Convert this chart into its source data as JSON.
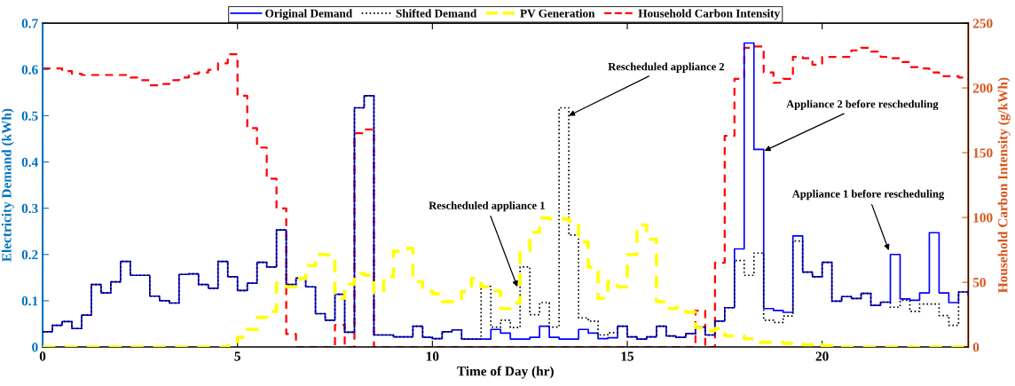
{
  "chart_data": {
    "type": "step",
    "xlabel": "Time of Day (hr)",
    "ylabel": "Electricity Demand (kWh)",
    "y2label": "Household Carbon Intensity (g/kWh)",
    "x": [
      0,
      0.25,
      0.5,
      0.75,
      1,
      1.25,
      1.5,
      1.75,
      2,
      2.25,
      2.5,
      2.75,
      3,
      3.25,
      3.5,
      3.75,
      4,
      4.25,
      4.5,
      4.75,
      5,
      5.25,
      5.5,
      5.75,
      6,
      6.25,
      6.5,
      6.75,
      7,
      7.25,
      7.5,
      7.75,
      8,
      8.25,
      8.5,
      8.75,
      9,
      9.25,
      9.5,
      9.75,
      10,
      10.25,
      10.5,
      10.75,
      11,
      11.25,
      11.5,
      11.75,
      12,
      12.25,
      12.5,
      12.75,
      13,
      13.25,
      13.5,
      13.75,
      14,
      14.25,
      14.5,
      14.75,
      15,
      15.25,
      15.5,
      15.75,
      16,
      16.25,
      16.5,
      16.75,
      17,
      17.25,
      17.5,
      17.75,
      18,
      18.25,
      18.5,
      18.75,
      19,
      19.25,
      19.5,
      19.75,
      20,
      20.25,
      20.5,
      20.75,
      21,
      21.25,
      21.5,
      21.75,
      22,
      22.25,
      22.5,
      22.75,
      23,
      23.25,
      23.5,
      23.75
    ],
    "series": [
      {
        "name": "Original Demand",
        "color": "#0000ff",
        "line_style": "solid",
        "values": [
          0.033,
          0.047,
          0.055,
          0.04,
          0.069,
          0.135,
          0.117,
          0.141,
          0.185,
          0.155,
          0.155,
          0.11,
          0.1,
          0.095,
          0.157,
          0.158,
          0.135,
          0.127,
          0.185,
          0.152,
          0.122,
          0.138,
          0.183,
          0.173,
          0.253,
          0.135,
          0.149,
          0.13,
          0.072,
          0.058,
          0.114,
          0.032,
          0.517,
          0.543,
          0.026,
          0.026,
          0.022,
          0.022,
          0.045,
          0.021,
          0.018,
          0.033,
          0.037,
          0.017,
          0.017,
          0.017,
          0.038,
          0.03,
          0.017,
          0.017,
          0.021,
          0.045,
          0.021,
          0.017,
          0.017,
          0.038,
          0.03,
          0.018,
          0.02,
          0.045,
          0.022,
          0.017,
          0.022,
          0.045,
          0.024,
          0.021,
          0.029,
          0.043,
          0.026,
          0.056,
          0.085,
          0.212,
          0.657,
          0.427,
          0.083,
          0.079,
          0.075,
          0.24,
          0.162,
          0.152,
          0.183,
          0.099,
          0.109,
          0.105,
          0.116,
          0.09,
          0.097,
          0.2,
          0.104,
          0.101,
          0.117,
          0.247,
          0.117,
          0.096,
          0.119,
          0.113
        ]
      },
      {
        "name": "Shifted Demand",
        "color": "#000000",
        "line_style": "dotted",
        "values": [
          0.033,
          0.047,
          0.055,
          0.04,
          0.069,
          0.135,
          0.117,
          0.141,
          0.185,
          0.155,
          0.155,
          0.11,
          0.1,
          0.095,
          0.157,
          0.158,
          0.135,
          0.127,
          0.185,
          0.152,
          0.122,
          0.138,
          0.183,
          0.173,
          0.253,
          0.135,
          0.149,
          0.13,
          0.072,
          0.058,
          0.114,
          0.032,
          0.517,
          0.543,
          0.026,
          0.026,
          0.022,
          0.022,
          0.045,
          0.021,
          0.018,
          0.033,
          0.037,
          0.017,
          0.017,
          0.131,
          0.043,
          0.058,
          0.042,
          0.173,
          0.07,
          0.096,
          0.043,
          0.517,
          0.242,
          0.063,
          0.056,
          0.026,
          0.031,
          0.045,
          0.022,
          0.017,
          0.022,
          0.045,
          0.024,
          0.021,
          0.029,
          0.043,
          0.026,
          0.056,
          0.085,
          0.187,
          0.155,
          0.203,
          0.058,
          0.053,
          0.067,
          0.229,
          0.162,
          0.152,
          0.183,
          0.099,
          0.109,
          0.105,
          0.116,
          0.09,
          0.097,
          0.086,
          0.101,
          0.077,
          0.093,
          0.093,
          0.068,
          0.047,
          0.119,
          0.113
        ]
      },
      {
        "name": "PV Generation",
        "color": "#ffff00",
        "line_style": "dashed",
        "values": [
          0,
          0,
          0,
          0,
          0,
          0,
          0,
          0,
          0,
          0,
          0,
          0,
          0,
          0,
          0,
          0,
          0,
          0,
          0,
          0.003,
          0.021,
          0.038,
          0.064,
          0.077,
          0.138,
          0.13,
          0.148,
          0.176,
          0.2,
          0.199,
          0.105,
          0.136,
          0.159,
          0.155,
          0.117,
          0.152,
          0.207,
          0.213,
          0.141,
          0.121,
          0.115,
          0.098,
          0.098,
          0.12,
          0.148,
          0.13,
          0.121,
          0.083,
          0.095,
          0.208,
          0.248,
          0.279,
          0.277,
          0.277,
          0.272,
          0.227,
          0.173,
          0.105,
          0.141,
          0.13,
          0.2,
          0.264,
          0.233,
          0.098,
          0.083,
          0.086,
          0.075,
          0.042,
          0.035,
          0.04,
          0.024,
          0.024,
          0.018,
          0.01,
          0.01,
          0.01,
          0.008,
          0.007,
          0.005,
          0.007,
          0.003,
          0,
          0,
          0,
          0,
          0,
          0,
          0,
          0,
          0,
          0,
          0,
          0,
          0,
          0,
          0
        ]
      },
      {
        "name": "Household Carbon Intensity",
        "color": "#ff0000",
        "line_style": "dashed",
        "axis": "y2",
        "values": [
          215,
          215,
          213,
          211,
          210,
          210,
          210,
          210,
          210,
          208,
          206,
          202,
          203,
          206,
          208,
          211,
          212,
          214,
          219,
          226,
          194,
          169,
          154,
          130,
          107,
          10,
          0,
          0,
          0,
          0,
          17,
          0,
          165,
          168,
          0,
          0,
          0,
          0,
          0,
          0,
          0,
          0,
          0,
          0,
          0,
          0,
          0,
          0,
          0,
          0,
          0,
          0,
          0,
          0,
          0,
          0,
          0,
          0,
          0,
          0,
          0,
          0,
          0,
          0,
          0,
          0,
          0,
          28,
          0,
          65,
          163,
          207,
          231,
          232,
          212,
          204,
          207,
          224,
          223,
          218,
          224,
          224,
          224,
          229,
          231,
          228,
          224,
          223,
          220,
          216,
          215,
          212,
          209,
          209,
          208,
          206
        ]
      }
    ],
    "xlim": [
      0,
      23.75
    ],
    "xticks": [
      0,
      5,
      10,
      15,
      20
    ],
    "ylim": [
      0,
      0.7
    ],
    "yticks": [
      0,
      0.1,
      0.2,
      0.3,
      0.4,
      0.5,
      0.6,
      0.7
    ],
    "y2lim": [
      0,
      250
    ],
    "y2ticks": [
      0,
      50,
      100,
      150,
      200,
      250
    ],
    "legend": "top",
    "grid": false,
    "annotations": [
      {
        "text": "Rescheduled appliance 1",
        "x": 12.18,
        "y": 0.13
      },
      {
        "text": "Rescheduled appliance 2",
        "x": 13.5,
        "y": 0.5
      },
      {
        "text": "Appliance 2 before rescheduling",
        "x": 18.52,
        "y": 0.424
      },
      {
        "text": "Appliance 1 before rescheduling",
        "x": 21.71,
        "y": 0.209
      }
    ]
  }
}
